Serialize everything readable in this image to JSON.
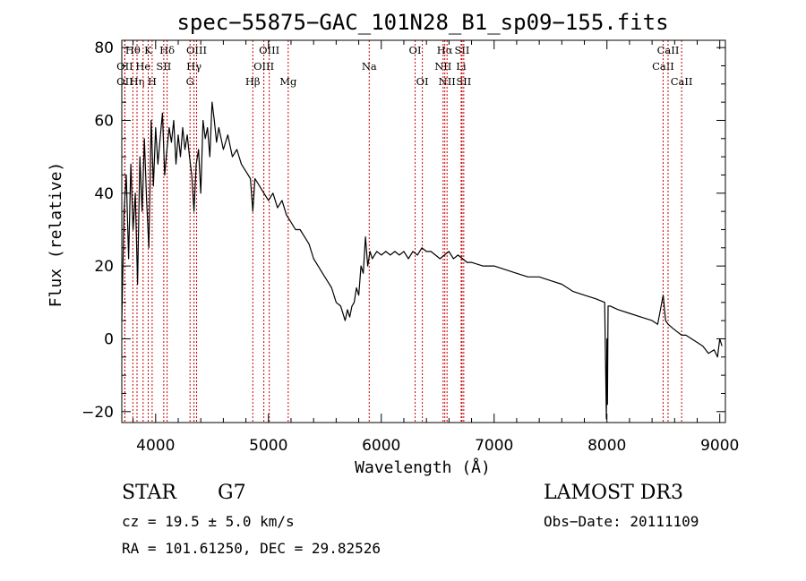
{
  "chart_data": {
    "type": "line",
    "title": "spec−55875−GAC_101N28_B1_sp09−155.fits",
    "xlabel": "Wavelength (Å)",
    "ylabel": "Flux (relative)",
    "xlim": [
      3700,
      9050
    ],
    "ylim": [
      -23,
      82
    ],
    "xticks": [
      4000,
      5000,
      6000,
      7000,
      8000,
      9000
    ],
    "yticks": [
      -20,
      0,
      20,
      40,
      60,
      80
    ],
    "tick_labels_x": [
      "4000",
      "5000",
      "6000",
      "7000",
      "8000",
      "9000"
    ],
    "tick_labels_y": [
      "−20",
      "0",
      "20",
      "40",
      "60",
      "80"
    ],
    "series": [
      {
        "name": "spectrum",
        "x": [
          3700,
          3720,
          3740,
          3760,
          3780,
          3800,
          3820,
          3840,
          3860,
          3880,
          3900,
          3920,
          3940,
          3960,
          3980,
          4000,
          4020,
          4040,
          4060,
          4080,
          4100,
          4120,
          4140,
          4160,
          4180,
          4200,
          4220,
          4240,
          4260,
          4280,
          4300,
          4320,
          4340,
          4360,
          4380,
          4400,
          4420,
          4440,
          4460,
          4480,
          4500,
          4520,
          4540,
          4560,
          4580,
          4600,
          4640,
          4680,
          4720,
          4760,
          4800,
          4840,
          4861,
          4880,
          4920,
          4960,
          5000,
          5040,
          5080,
          5120,
          5160,
          5200,
          5240,
          5280,
          5320,
          5360,
          5400,
          5440,
          5480,
          5520,
          5560,
          5600,
          5640,
          5680,
          5700,
          5720,
          5740,
          5760,
          5780,
          5800,
          5820,
          5840,
          5860,
          5880,
          5900,
          5920,
          5960,
          6000,
          6040,
          6080,
          6120,
          6160,
          6200,
          6240,
          6280,
          6320,
          6360,
          6400,
          6440,
          6480,
          6520,
          6560,
          6600,
          6640,
          6680,
          6720,
          6760,
          6800,
          6900,
          7000,
          7100,
          7200,
          7300,
          7400,
          7500,
          7600,
          7700,
          7800,
          7900,
          7980,
          7995,
          8000,
          8005,
          8010,
          8030,
          8100,
          8200,
          8300,
          8400,
          8450,
          8498,
          8520,
          8542,
          8580,
          8620,
          8662,
          8700,
          8750,
          8800,
          8850,
          8900,
          8950,
          8980,
          9000,
          9020
        ],
        "values": [
          5,
          35,
          45,
          22,
          48,
          30,
          40,
          15,
          50,
          35,
          55,
          38,
          25,
          60,
          42,
          58,
          48,
          55,
          62,
          45,
          52,
          58,
          54,
          60,
          48,
          56,
          50,
          58,
          52,
          56,
          50,
          45,
          35,
          48,
          52,
          40,
          60,
          55,
          58,
          50,
          65,
          60,
          54,
          58,
          55,
          52,
          56,
          50,
          52,
          48,
          46,
          44,
          35,
          44,
          42,
          40,
          38,
          40,
          36,
          38,
          34,
          32,
          30,
          30,
          28,
          26,
          22,
          20,
          18,
          16,
          14,
          10,
          9,
          5,
          8,
          6,
          9,
          10,
          14,
          12,
          20,
          18,
          28,
          20,
          24,
          22,
          24,
          23,
          24,
          23,
          24,
          23,
          24,
          22,
          24,
          23,
          25,
          24,
          24,
          23,
          22,
          23,
          24,
          22,
          23,
          22,
          21,
          21,
          20,
          20,
          19,
          18,
          17,
          17,
          16,
          15,
          13,
          12,
          11,
          10,
          -22,
          0,
          -18,
          9,
          9,
          8,
          7,
          6,
          5,
          4,
          12,
          5,
          4,
          3,
          2,
          1,
          1,
          0,
          -1,
          -2,
          -4,
          -3,
          -5,
          0,
          -2
        ]
      }
    ],
    "lines": [
      {
        "name": "Hθ",
        "x": 3798,
        "row": 1
      },
      {
        "name": "OII",
        "x": 3727,
        "row": 2
      },
      {
        "name": "OII",
        "x": 3727,
        "row": 3
      },
      {
        "name": "Hη",
        "x": 3835,
        "row": 3
      },
      {
        "name": "He",
        "x": 3889,
        "row": 2
      },
      {
        "name": "K",
        "x": 3934,
        "row": 1
      },
      {
        "name": "H",
        "x": 3969,
        "row": 3
      },
      {
        "name": "SII",
        "x": 4072,
        "row": 2
      },
      {
        "name": "Hδ",
        "x": 4102,
        "row": 1
      },
      {
        "name": "OIII",
        "x": 4363,
        "row": 1
      },
      {
        "name": "Hγ",
        "x": 4340,
        "row": 2
      },
      {
        "name": "G",
        "x": 4305,
        "row": 3
      },
      {
        "name": "Hβ",
        "x": 4861,
        "row": 3
      },
      {
        "name": "OIII",
        "x": 4959,
        "row": 2
      },
      {
        "name": "OIII",
        "x": 5007,
        "row": 1
      },
      {
        "name": "Mg",
        "x": 5175,
        "row": 3
      },
      {
        "name": "Na",
        "x": 5893,
        "row": 2
      },
      {
        "name": "OI",
        "x": 6300,
        "row": 1
      },
      {
        "name": "OI",
        "x": 6364,
        "row": 3
      },
      {
        "name": "Hα",
        "x": 6563,
        "row": 1
      },
      {
        "name": "NII",
        "x": 6548,
        "row": 2
      },
      {
        "name": "NII",
        "x": 6583,
        "row": 3
      },
      {
        "name": "Li",
        "x": 6708,
        "row": 2
      },
      {
        "name": "SII",
        "x": 6716,
        "row": 1
      },
      {
        "name": "SII",
        "x": 6731,
        "row": 3
      },
      {
        "name": "CaII",
        "x": 8498,
        "row": 2
      },
      {
        "name": "CaII",
        "x": 8542,
        "row": 1
      },
      {
        "name": "CaII",
        "x": 8662,
        "row": 3
      }
    ]
  },
  "info": {
    "class_label": "STAR",
    "subclass": "G7",
    "survey": "LAMOST DR3",
    "redshift_text": "cz = 19.5 ± 5.0 km/s",
    "obs_date": "Obs−Date: 20111109",
    "coords": "RA = 101.61250, DEC =  29.82526"
  },
  "colors": {
    "line_marker": "#cc0000",
    "spectrum": "#000000"
  }
}
